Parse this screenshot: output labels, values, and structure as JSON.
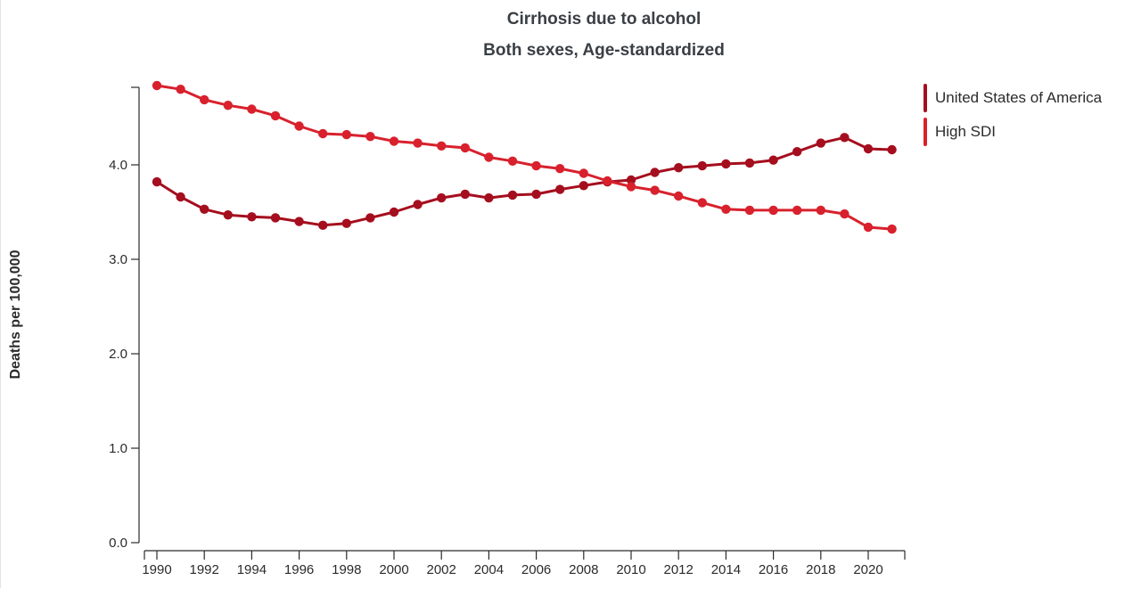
{
  "chart_data": {
    "type": "line",
    "title": "Cirrhosis due to alcohol",
    "subtitle": "Both sexes, Age-standardized",
    "ylabel": "Deaths per 100,000",
    "xlabel": "",
    "ylim": [
      0,
      4.85
    ],
    "yticks": [
      "0.0",
      "1.0",
      "2.0",
      "3.0",
      "4.0"
    ],
    "yticks_values": [
      0,
      1,
      2,
      3,
      4
    ],
    "xticks": [
      "1990",
      "1992",
      "1994",
      "1996",
      "1998",
      "2000",
      "2002",
      "2004",
      "2006",
      "2008",
      "2010",
      "2012",
      "2014",
      "2016",
      "2018",
      "2020"
    ],
    "x": [
      1990,
      1991,
      1992,
      1993,
      1994,
      1995,
      1996,
      1997,
      1998,
      1999,
      2000,
      2001,
      2002,
      2003,
      2004,
      2005,
      2006,
      2007,
      2008,
      2009,
      2010,
      2011,
      2012,
      2013,
      2014,
      2015,
      2016,
      2017,
      2018,
      2019,
      2020,
      2021
    ],
    "grid": false,
    "legend_position": "top-right",
    "series": [
      {
        "name": "United States of America",
        "color": "#a50e1e",
        "values": [
          3.82,
          3.66,
          3.53,
          3.47,
          3.45,
          3.44,
          3.4,
          3.36,
          3.38,
          3.44,
          3.5,
          3.58,
          3.65,
          3.69,
          3.65,
          3.68,
          3.69,
          3.74,
          3.78,
          3.82,
          3.84,
          3.92,
          3.97,
          3.99,
          4.01,
          4.02,
          4.05,
          4.14,
          4.23,
          4.29,
          4.17,
          4.16
        ]
      },
      {
        "name": "High SDI",
        "color": "#d8212d",
        "values": [
          4.84,
          4.8,
          4.69,
          4.63,
          4.59,
          4.52,
          4.41,
          4.33,
          4.32,
          4.3,
          4.25,
          4.23,
          4.2,
          4.18,
          4.08,
          4.04,
          3.99,
          3.96,
          3.91,
          3.83,
          3.77,
          3.73,
          3.67,
          3.6,
          3.53,
          3.52,
          3.52,
          3.52,
          3.52,
          3.48,
          3.34,
          3.32
        ]
      }
    ]
  }
}
